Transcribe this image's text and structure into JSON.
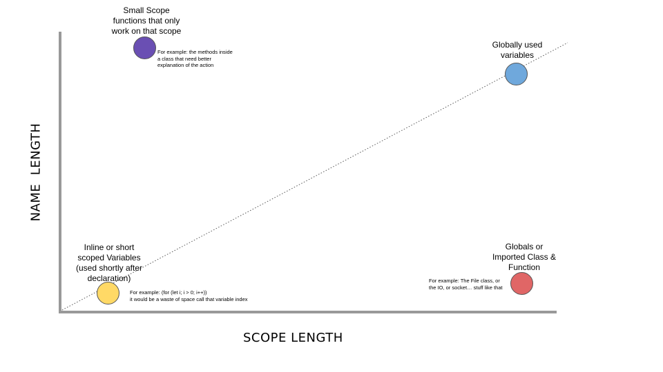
{
  "axes": {
    "x_title": "SCOPE LENGTH",
    "y_title": "NAME  LENGTH"
  },
  "quadrants": {
    "top_left": {
      "title_lines": [
        "Small Scope",
        "functions that only",
        "work on that scope"
      ],
      "note_lines": [
        "For example: the methods inside",
        "a class that need better",
        "explanation of the action"
      ],
      "color": "#6a4fb3"
    },
    "top_right": {
      "title_lines": [
        "Globally used",
        "variables"
      ],
      "color": "#6fa8dc"
    },
    "bottom_left": {
      "title_lines": [
        "Inline or short",
        "scoped Variables",
        "(used shortly after",
        "declaration)"
      ],
      "note_lines": [
        "For example: (for (let i; i > 0; i++))",
        "it would be a waste of space call that variable index"
      ],
      "color": "#ffd966"
    },
    "bottom_right": {
      "title_lines": [
        "Globals or",
        "Imported Class &",
        "Function"
      ],
      "note_lines": [
        "For example: The File class, or",
        "the IO, or socket… stuff like that"
      ],
      "color": "#e06666"
    }
  },
  "colors": {
    "axis": "#999999",
    "trend_line": "#555555"
  }
}
